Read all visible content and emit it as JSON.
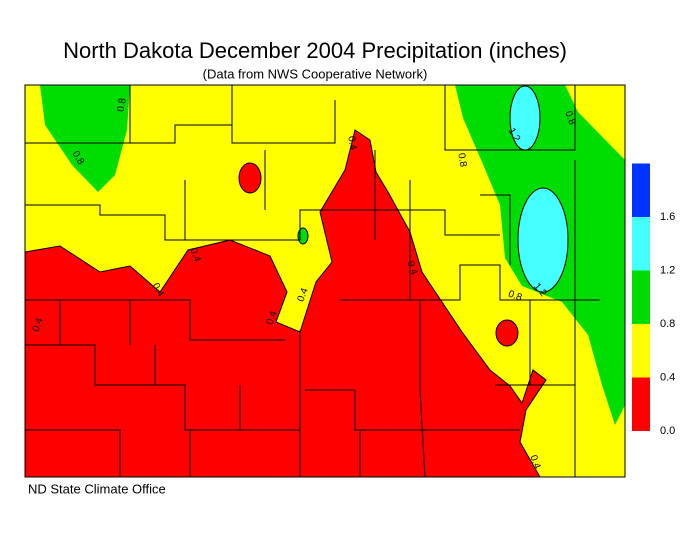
{
  "title": "North Dakota December 2004 Precipitation (inches)",
  "subtitle": "(Data from NWS Cooperative Network)",
  "credit": "ND State Climate Office",
  "legend": {
    "colors": [
      "#ff0000",
      "#ffff00",
      "#00dd00",
      "#44ffff",
      "#0033ff"
    ],
    "ticks": [
      {
        "value": 0,
        "label": "0.0"
      },
      0.4,
      0.8,
      1.2,
      1.6
    ]
  },
  "contour_labels": [
    0.8,
    0.8,
    0.8,
    0.8,
    1.2,
    1.2,
    0.4,
    0.4,
    0.4,
    0.4,
    0.4,
    0.4,
    0.4,
    0.8,
    0.4
  ]
}
